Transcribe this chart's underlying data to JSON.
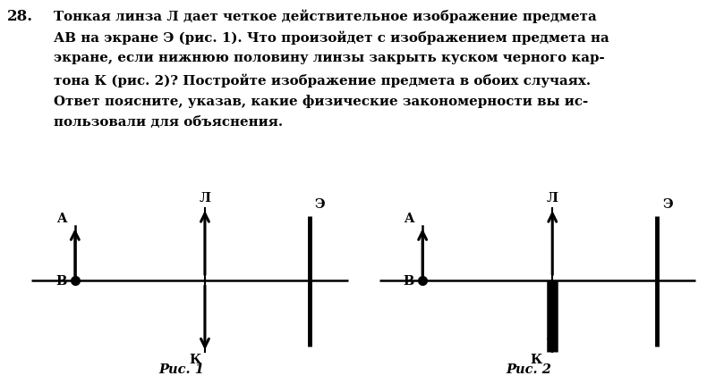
{
  "fig1_caption": "Рис. 1",
  "fig2_caption": "Рис. 2",
  "label_A": "A",
  "label_B": "B",
  "label_L": "Л",
  "label_E": "Э",
  "label_K": "К",
  "problem_num": "28.",
  "text_line1": "Тонкая линза Л дает четкое действительное изображение предмета",
  "text_line2": "АВ на экране Э (рис. 1). Что произойдет с изображением предмета на",
  "text_line3": "экране, если нижнюю половину линзы закрыть куском черного кар-",
  "text_line4": "тона К (рис. 2)? Постройте изображение предмета в обоих случаях.",
  "text_line5": "Ответ поясните, указав, какие физические закономерности вы ис-",
  "text_line6": "пользовали для объяснения.",
  "arrow_color": "#000000",
  "line_color": "#000000",
  "bg_color": "#ffffff",
  "text_color": "#000000",
  "fontsize_text": 10.8,
  "fontsize_label": 10.5,
  "fontsize_num": 12
}
